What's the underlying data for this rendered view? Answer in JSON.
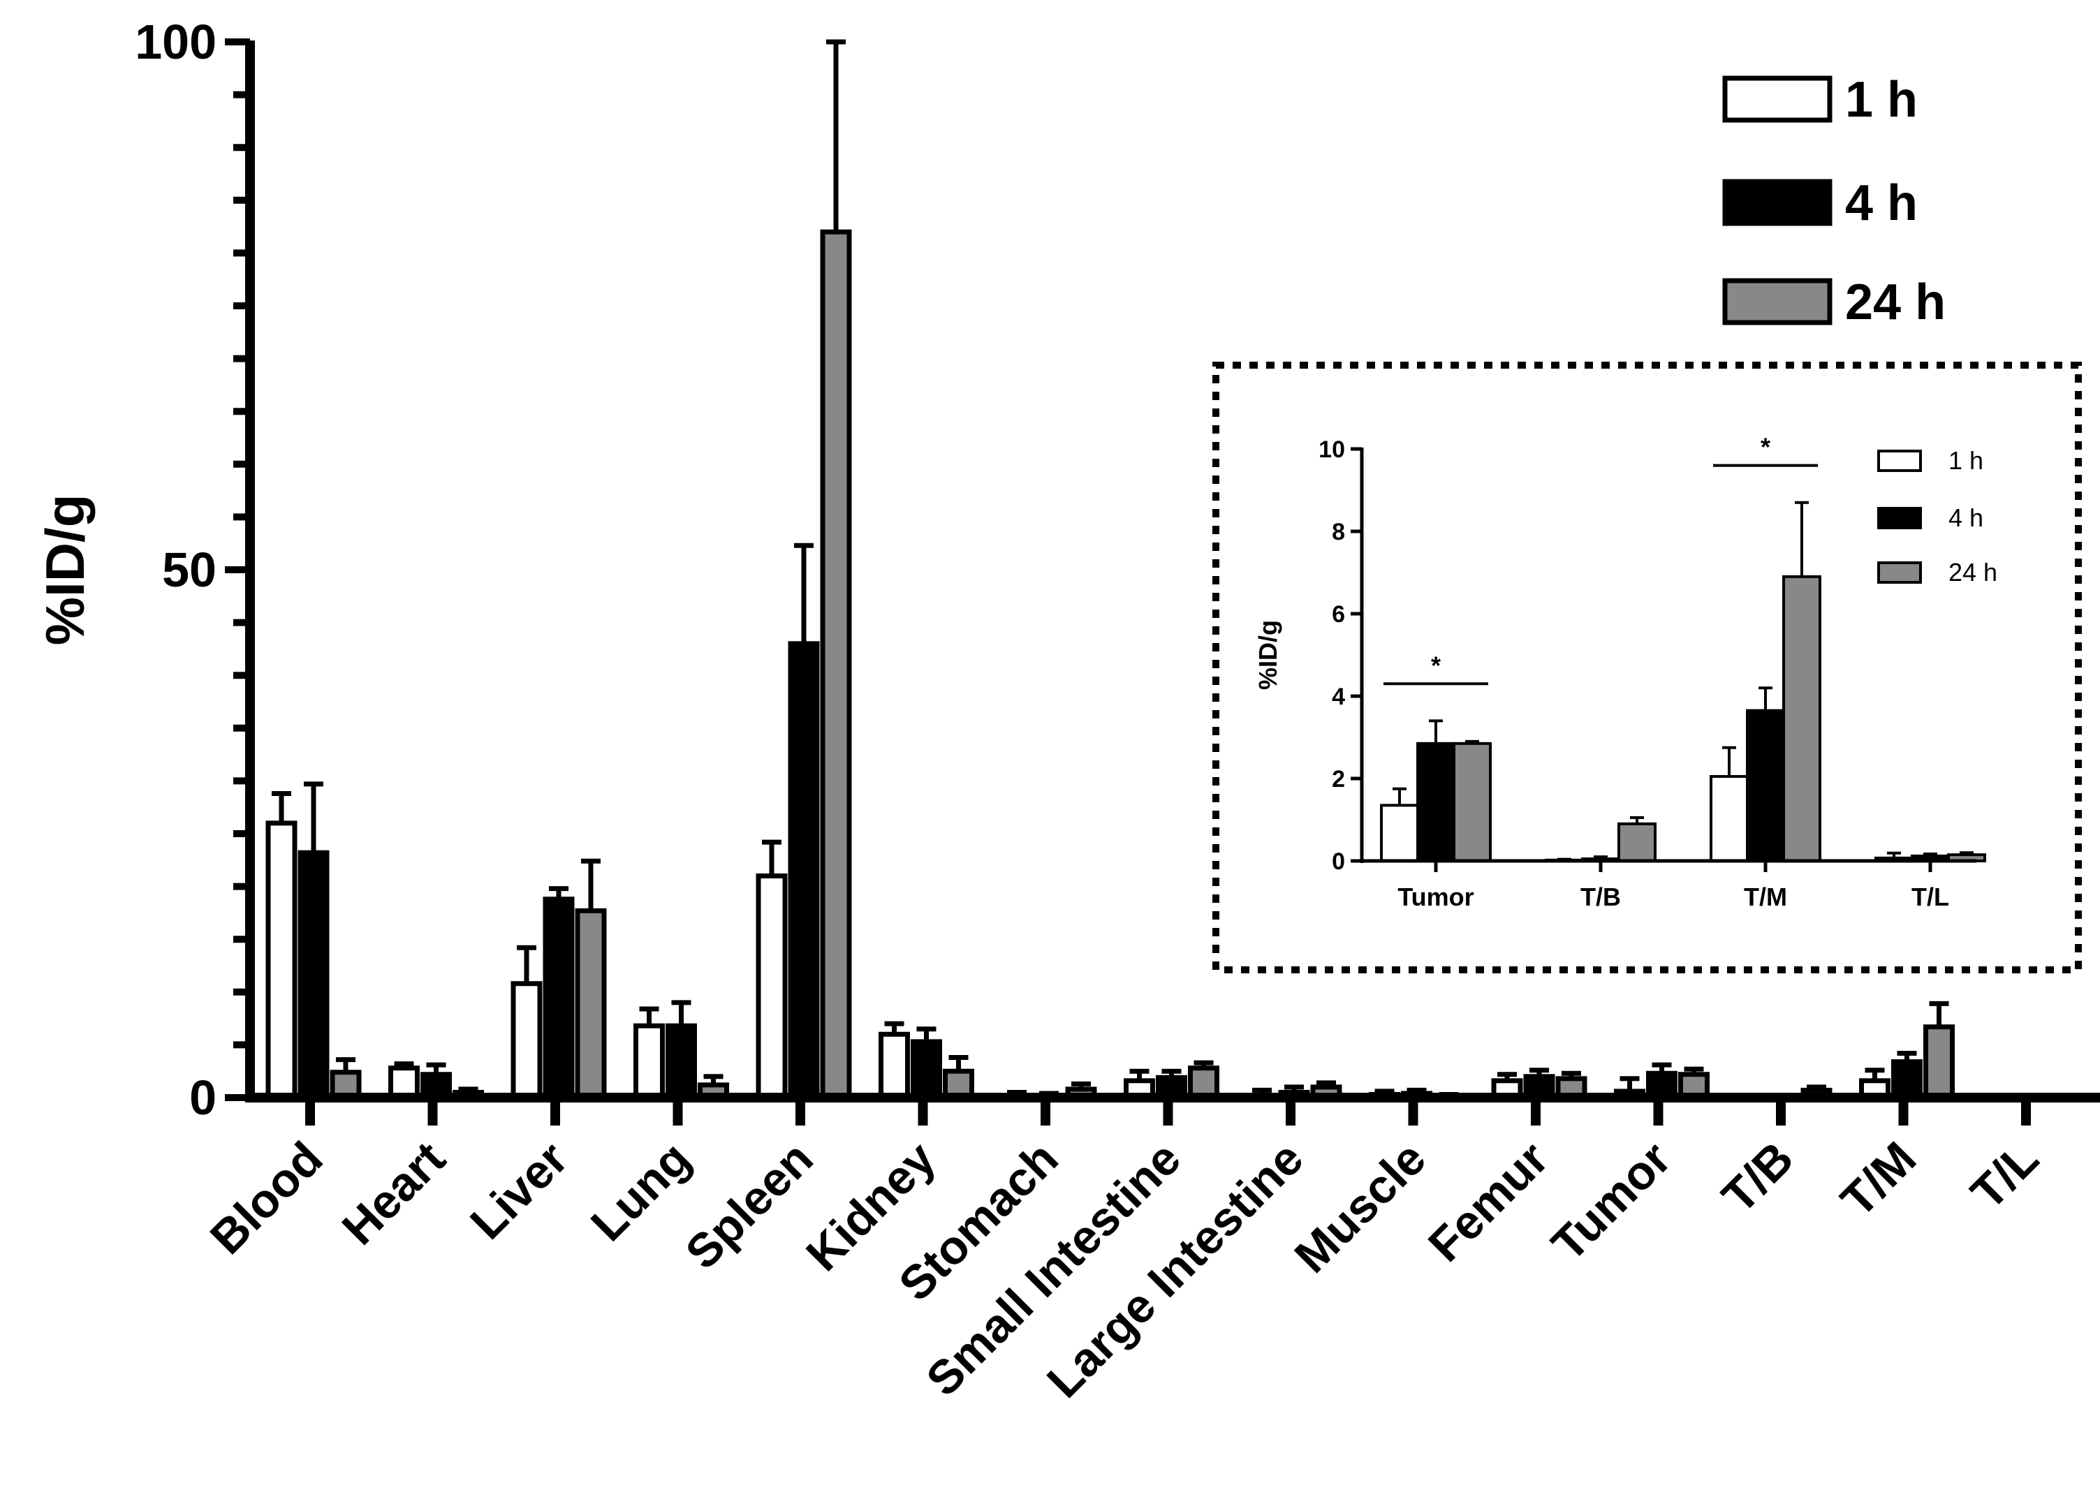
{
  "chart_data": [
    {
      "type": "bar",
      "ylabel": "%ID/g",
      "ylim": [
        0,
        100
      ],
      "yticks": [
        0,
        50,
        100
      ],
      "categories": [
        "Blood",
        "Heart",
        "Liver",
        "Lung",
        "Spleen",
        "Kidney",
        "Stomach",
        "Small Intestine",
        "Large Intestine",
        "Muscle",
        "Femur",
        "Tumor",
        "T/B",
        "T/M",
        "T/L"
      ],
      "series": [
        {
          "name": "1 h",
          "color": "#ffffff",
          "values": [
            26.0,
            2.8,
            10.8,
            6.8,
            21.0,
            6.0,
            0.0,
            1.6,
            0.2,
            0.3,
            1.6,
            0.6,
            0.1,
            1.6,
            0.1
          ],
          "errors": [
            2.8,
            0.4,
            3.4,
            1.6,
            3.2,
            1.0,
            0.5,
            0.9,
            0.5,
            0.3,
            0.6,
            1.2,
            0.1,
            1.0,
            0.1
          ]
        },
        {
          "name": "4 h",
          "color": "#000000",
          "values": [
            23.2,
            2.2,
            18.8,
            6.8,
            43.0,
            5.3,
            0.0,
            1.9,
            0.5,
            0.4,
            2.0,
            2.3,
            0.1,
            3.4,
            0.1
          ],
          "errors": [
            6.5,
            0.9,
            1.0,
            2.2,
            9.3,
            1.2,
            0.4,
            0.6,
            0.5,
            0.3,
            0.6,
            0.8,
            0.1,
            0.8,
            0.1
          ]
        },
        {
          "name": "24 h",
          "color": "#888888",
          "values": [
            2.4,
            0.5,
            17.7,
            1.2,
            82.0,
            2.5,
            0.8,
            2.8,
            1.0,
            0.2,
            1.8,
            2.2,
            0.7,
            6.7,
            0.1
          ],
          "errors": [
            1.2,
            0.3,
            4.7,
            0.8,
            18.0,
            1.3,
            0.5,
            0.5,
            0.4,
            0.1,
            0.5,
            0.5,
            0.3,
            2.2,
            0.1
          ]
        }
      ],
      "legend": {
        "position": "top-right",
        "labels": [
          "1 h",
          "4 h",
          "24 h"
        ]
      }
    },
    {
      "type": "bar",
      "inset": true,
      "ylabel": "%ID/g",
      "ylim": [
        0,
        10
      ],
      "yticks": [
        0,
        2,
        4,
        6,
        8,
        10
      ],
      "categories": [
        "Tumor",
        "T/B",
        "T/M",
        "T/L"
      ],
      "series": [
        {
          "name": "1 h",
          "color": "#ffffff",
          "values": [
            1.35,
            0.02,
            2.05,
            0.07
          ],
          "errors": [
            0.4,
            0.02,
            0.7,
            0.12
          ]
        },
        {
          "name": "4 h",
          "color": "#000000",
          "values": [
            2.85,
            0.05,
            3.65,
            0.12
          ],
          "errors": [
            0.55,
            0.05,
            0.55,
            0.05
          ]
        },
        {
          "name": "24 h",
          "color": "#888888",
          "values": [
            2.85,
            0.9,
            6.9,
            0.15
          ],
          "errors": [
            0.05,
            0.15,
            1.8,
            0.05
          ]
        }
      ],
      "significance": [
        {
          "category": "Tumor",
          "label": "*"
        },
        {
          "category": "T/M",
          "label": "*"
        }
      ],
      "legend": {
        "position": "top-right",
        "labels": [
          "1 h",
          "4 h",
          "24 h"
        ]
      }
    }
  ]
}
